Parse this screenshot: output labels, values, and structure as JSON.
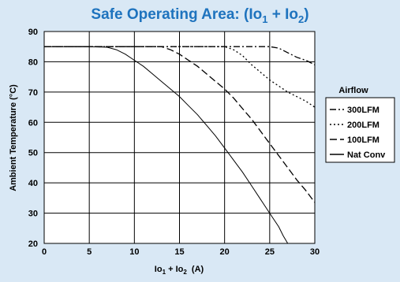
{
  "title_parts": {
    "main": "Safe Operating Area: (Io",
    "sub1": "1",
    "plus": " + Io",
    "sub2": "2",
    "close": ")"
  },
  "chart_data": {
    "type": "line",
    "title": "Safe Operating Area: (Io1 + Io2)",
    "xlabel_parts": {
      "a": "Io",
      "sub1": "1",
      "b": " + Io",
      "sub2": "2",
      "c": "  (A)"
    },
    "ylabel": "Ambient Temperature (°C)",
    "xlim": [
      0,
      30
    ],
    "ylim": [
      20,
      90
    ],
    "xticks": [
      0,
      5,
      10,
      15,
      20,
      25,
      30
    ],
    "yticks": [
      20,
      30,
      40,
      50,
      60,
      70,
      80,
      90
    ],
    "grid": true,
    "legend": {
      "title": "Airflow",
      "placement": "right"
    },
    "series": [
      {
        "name": "300LFM",
        "dash": "8,3,2,3",
        "points": [
          [
            0,
            85
          ],
          [
            25,
            85
          ],
          [
            26,
            84.5
          ],
          [
            27,
            83
          ],
          [
            28,
            81.5
          ],
          [
            29,
            80.5
          ],
          [
            30,
            79
          ]
        ]
      },
      {
        "name": "200LFM",
        "dash": "2,3",
        "points": [
          [
            0,
            85
          ],
          [
            20,
            85
          ],
          [
            21,
            84
          ],
          [
            22,
            82
          ],
          [
            23,
            79
          ],
          [
            24,
            76.5
          ],
          [
            25,
            74
          ],
          [
            26,
            72
          ],
          [
            27,
            70
          ],
          [
            28,
            68.5
          ],
          [
            29,
            67
          ],
          [
            30,
            65
          ]
        ]
      },
      {
        "name": "100LFM",
        "dash": "9,4",
        "points": [
          [
            0,
            85
          ],
          [
            13,
            85
          ],
          [
            14,
            84
          ],
          [
            15,
            82.5
          ],
          [
            16,
            80.5
          ],
          [
            17,
            78.5
          ],
          [
            18,
            76
          ],
          [
            19,
            73.5
          ],
          [
            20,
            71
          ],
          [
            21,
            68
          ],
          [
            22,
            64.5
          ],
          [
            23,
            61
          ],
          [
            24,
            57
          ],
          [
            25,
            53
          ],
          [
            26,
            49
          ],
          [
            27,
            45
          ],
          [
            28,
            41
          ],
          [
            29,
            37.5
          ],
          [
            30,
            33.5
          ]
        ]
      },
      {
        "name": "Nat Conv",
        "dash": "",
        "points": [
          [
            0,
            85
          ],
          [
            5,
            85
          ],
          [
            7,
            84.8
          ],
          [
            8,
            84
          ],
          [
            9,
            82.5
          ],
          [
            10,
            80.5
          ],
          [
            11,
            78.5
          ],
          [
            12,
            76
          ],
          [
            13,
            73.5
          ],
          [
            14,
            71
          ],
          [
            15,
            68.5
          ],
          [
            16,
            65.5
          ],
          [
            17,
            62.5
          ],
          [
            18,
            59
          ],
          [
            19,
            55.5
          ],
          [
            20,
            51.5
          ],
          [
            21,
            47.5
          ],
          [
            22,
            43.5
          ],
          [
            23,
            39
          ],
          [
            24,
            34.5
          ],
          [
            25,
            30
          ],
          [
            26,
            25.5
          ],
          [
            26.5,
            22.5
          ],
          [
            27,
            20
          ]
        ]
      }
    ]
  }
}
